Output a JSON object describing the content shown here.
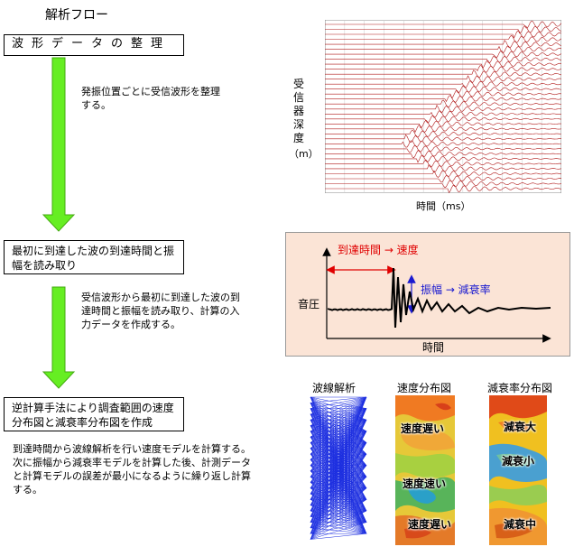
{
  "header": {
    "title": "解析フロー"
  },
  "flow": {
    "step1": "波形データの整理",
    "note1": "発振位置ごとに受信波形を整理する。",
    "step2": "最初に到達した波の到達時間と振幅を読み取り",
    "note2": "受信波形から最初に到達した波の到達時間と振幅を読み取り、計算の入力データを作成する。",
    "step3": "逆計算手法により調査範囲の速度分布図と減衰率分布図を作成",
    "note3": "到達時間から波線解析を行い速度モデルを計算する。次に振幅から減衰率モデルを計算した後、計測データと計算モデルの誤差が最小になるように繰り返し計算する。"
  },
  "seismogram": {
    "ylabel": "受信器深度",
    "yunit": "（m）",
    "xlabel": "時間（ms）"
  },
  "waveform_panel": {
    "arrival_label": "到達時間 → 速度",
    "amplitude_label": "振幅 → 減衰率",
    "ylabel": "音圧",
    "xlabel": "時間",
    "colors": {
      "arrival": "#e00000",
      "amplitude": "#1a1ad0"
    }
  },
  "results": {
    "raypath_title": "波線解析",
    "velocity_title": "速度分布図",
    "attenuation_title": "減衰率分布図",
    "velocity_labels": [
      "速度遅い",
      "速度速い",
      "速度遅い"
    ],
    "attenuation_labels": [
      "減衰大",
      "減衰小",
      "減衰中"
    ]
  }
}
